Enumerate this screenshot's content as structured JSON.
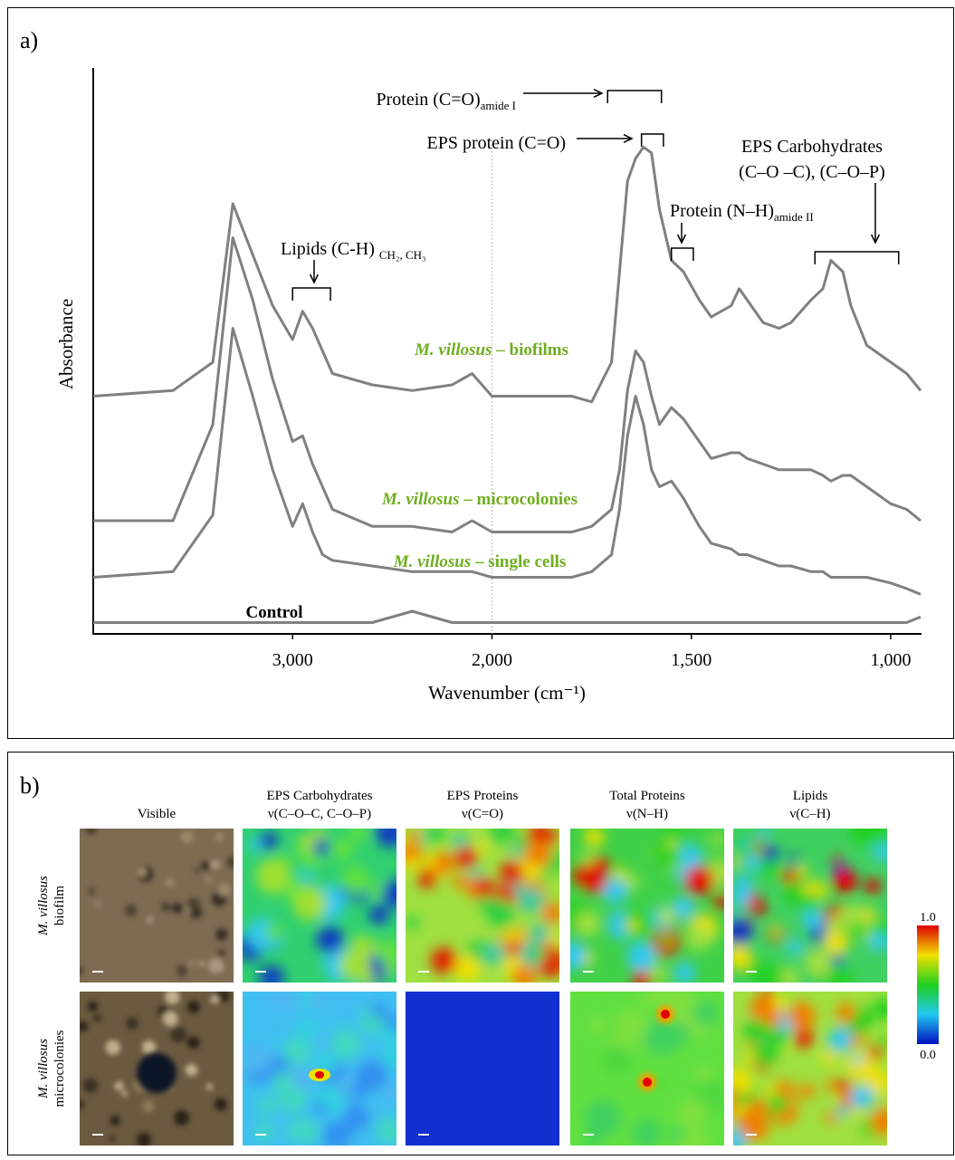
{
  "chart_data": {
    "type": "line",
    "panel_label": "a)",
    "ylabel": "Absorbance",
    "xlabel": "Wavenumber (cm⁻¹)",
    "x": [
      4000,
      3600,
      3400,
      3300,
      3200,
      3100,
      3000,
      2950,
      2900,
      2850,
      2800,
      2600,
      2400,
      2200,
      2100,
      2000,
      1800,
      1750,
      1700,
      1680,
      1660,
      1640,
      1620,
      1600,
      1580,
      1550,
      1520,
      1480,
      1450,
      1400,
      1380,
      1360,
      1320,
      1280,
      1250,
      1200,
      1170,
      1150,
      1120,
      1100,
      1060,
      1000,
      960,
      925
    ],
    "xlim": [
      4000,
      925
    ],
    "x_break": 2000,
    "xticks": [
      {
        "value": 3000,
        "label": "3,000"
      },
      {
        "value": 2000,
        "label": "2,000"
      },
      {
        "value": 1500,
        "label": "1,500"
      },
      {
        "value": 1000,
        "label": "1,000"
      }
    ],
    "ylim": [
      0,
      1
    ],
    "series": [
      {
        "name": "M. villosus – biofilms",
        "color": "#808080",
        "label_color": "#6fae1e",
        "values": [
          0.42,
          0.43,
          0.48,
          0.76,
          0.67,
          0.58,
          0.52,
          0.57,
          0.54,
          0.5,
          0.46,
          0.44,
          0.43,
          0.44,
          0.46,
          0.42,
          0.42,
          0.41,
          0.48,
          0.64,
          0.8,
          0.84,
          0.86,
          0.85,
          0.75,
          0.66,
          0.64,
          0.59,
          0.56,
          0.58,
          0.61,
          0.59,
          0.55,
          0.54,
          0.55,
          0.59,
          0.61,
          0.66,
          0.64,
          0.58,
          0.51,
          0.48,
          0.46,
          0.43
        ]
      },
      {
        "name": "M. villosus – microcolonies",
        "color": "#808080",
        "label_color": "#6fae1e",
        "values": [
          0.2,
          0.2,
          0.37,
          0.7,
          0.59,
          0.45,
          0.34,
          0.35,
          0.3,
          0.26,
          0.22,
          0.19,
          0.19,
          0.18,
          0.2,
          0.18,
          0.18,
          0.19,
          0.22,
          0.29,
          0.43,
          0.5,
          0.48,
          0.42,
          0.37,
          0.4,
          0.38,
          0.34,
          0.31,
          0.32,
          0.32,
          0.31,
          0.3,
          0.29,
          0.29,
          0.29,
          0.28,
          0.27,
          0.28,
          0.28,
          0.26,
          0.23,
          0.22,
          0.2
        ]
      },
      {
        "name": "M. villosus – single cells",
        "color": "#808080",
        "label_color": "#6fae1e",
        "values": [
          0.1,
          0.11,
          0.21,
          0.54,
          0.42,
          0.29,
          0.19,
          0.23,
          0.18,
          0.14,
          0.13,
          0.12,
          0.11,
          0.11,
          0.11,
          0.1,
          0.1,
          0.11,
          0.14,
          0.22,
          0.35,
          0.42,
          0.37,
          0.29,
          0.26,
          0.27,
          0.24,
          0.19,
          0.16,
          0.15,
          0.14,
          0.14,
          0.13,
          0.12,
          0.12,
          0.11,
          0.11,
          0.1,
          0.1,
          0.1,
          0.1,
          0.09,
          0.08,
          0.07
        ]
      },
      {
        "name": "Control",
        "color": "#808080",
        "label_color": "#6fae1e",
        "values": [
          0.02,
          0.02,
          0.02,
          0.02,
          0.02,
          0.02,
          0.02,
          0.02,
          0.02,
          0.02,
          0.02,
          0.02,
          0.04,
          0.02,
          0.02,
          0.02,
          0.02,
          0.02,
          0.02,
          0.02,
          0.02,
          0.02,
          0.02,
          0.02,
          0.02,
          0.02,
          0.02,
          0.02,
          0.02,
          0.02,
          0.02,
          0.02,
          0.02,
          0.02,
          0.02,
          0.02,
          0.02,
          0.02,
          0.02,
          0.02,
          0.02,
          0.02,
          0.02,
          0.03
        ]
      }
    ],
    "annotations": [
      {
        "text": "Lipids (C-H) ",
        "subscript": "CH₂, CH₃",
        "range": [
          3000,
          2810
        ]
      },
      {
        "text": "Protein (C=O)",
        "subscript": "amide I",
        "range": [
          1710,
          1575
        ]
      },
      {
        "text": "EPS protein (C=O)",
        "range": [
          1625,
          1570
        ]
      },
      {
        "text": "Protein (N–H)",
        "subscript": "amide II",
        "range": [
          1550,
          1495
        ]
      },
      {
        "text": "EPS Carbohydrates",
        "text2": "(C–O –C), (C–O–P)",
        "range": [
          1190,
          980
        ]
      }
    ]
  },
  "panel_b": {
    "panel_label": "b)",
    "columns": [
      {
        "title": "Visible"
      },
      {
        "title": "EPS Carbohydrates",
        "subtitle": "ν(C–O–C, C–O–P)"
      },
      {
        "title": "EPS Proteins",
        "subtitle": "ν(C=O)"
      },
      {
        "title": "Total Proteins",
        "subtitle": "ν(N–H)"
      },
      {
        "title": "Lipids",
        "subtitle": "ν(C–H)"
      }
    ],
    "rows": [
      {
        "species": "M. villosus",
        "label": "biofilm"
      },
      {
        "species": "M. villosus",
        "label": "microcolonies"
      }
    ],
    "colorbar_ticks": [
      {
        "value": 1,
        "label": "1.0"
      },
      {
        "value": 0,
        "label": "0.0"
      }
    ]
  }
}
